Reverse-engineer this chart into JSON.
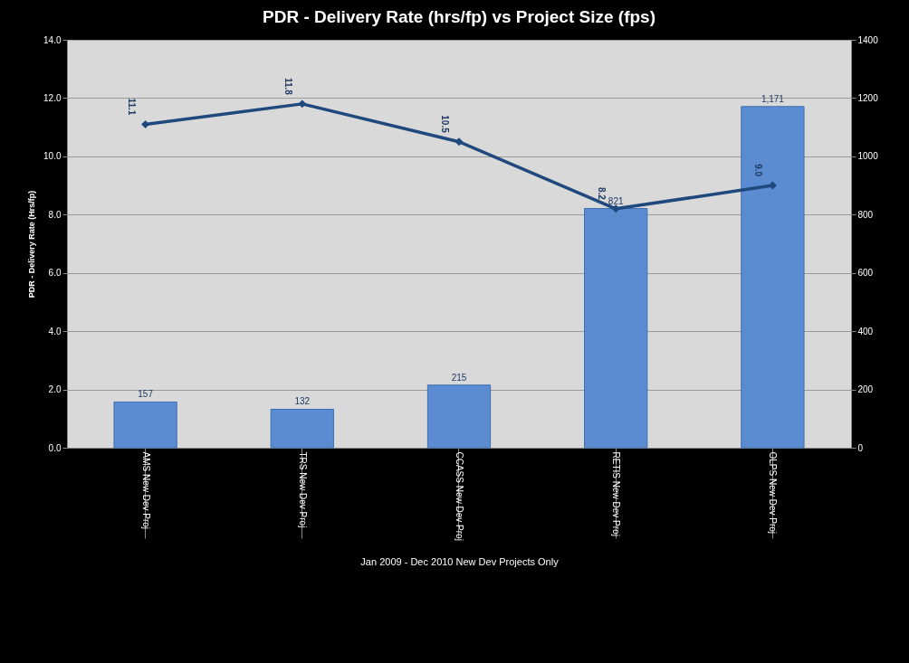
{
  "chart_data": {
    "type": "bar",
    "title": "PDR - Delivery Rate  (hrs/fp) vs Project Size (fps)",
    "xlabel": "Jan 2009 - Dec 2010 New Dev Projects Only",
    "ylabel": "PDR - Delivery Rate (Hrs/fp)",
    "categories": [
      "AMS New Dev Proj",
      "TRS New Dev Proj",
      "CCASS New Dev Proj",
      "RETIS New Dev Proj",
      "OLPS New Dev Proj"
    ],
    "series": [
      {
        "axis": "y2",
        "color": "#5b8bd0",
        "values": [
          157,
          132,
          215,
          821,
          1171
        ],
        "value_labels": [
          "157",
          "132",
          "215",
          "821",
          "1,171"
        ]
      },
      {
        "type": "line",
        "color": "#1f497d",
        "values": [
          11.1,
          11.8,
          10.5,
          8.2,
          9.0
        ],
        "value_labels": [
          "11.1",
          "11.8",
          "10.5",
          "8.2",
          "9.0"
        ]
      }
    ],
    "ylim": [
      0,
      14
    ],
    "yticks": [
      {
        "value": 0,
        "label": "0.0"
      },
      {
        "value": 2,
        "label": "2.0"
      },
      {
        "value": 4,
        "label": "4.0"
      },
      {
        "value": 6,
        "label": "6.0"
      },
      {
        "value": 8,
        "label": "8.0"
      },
      {
        "value": 10,
        "label": "10.0"
      },
      {
        "value": 12,
        "label": "12.0"
      },
      {
        "value": 14,
        "label": "14.0"
      }
    ],
    "y2lim": [
      0,
      1400
    ],
    "y2ticks": [
      0,
      200,
      400,
      600,
      800,
      1000,
      1200,
      1400
    ],
    "grid": "y",
    "marker": "diamond",
    "line_style": "solid"
  }
}
